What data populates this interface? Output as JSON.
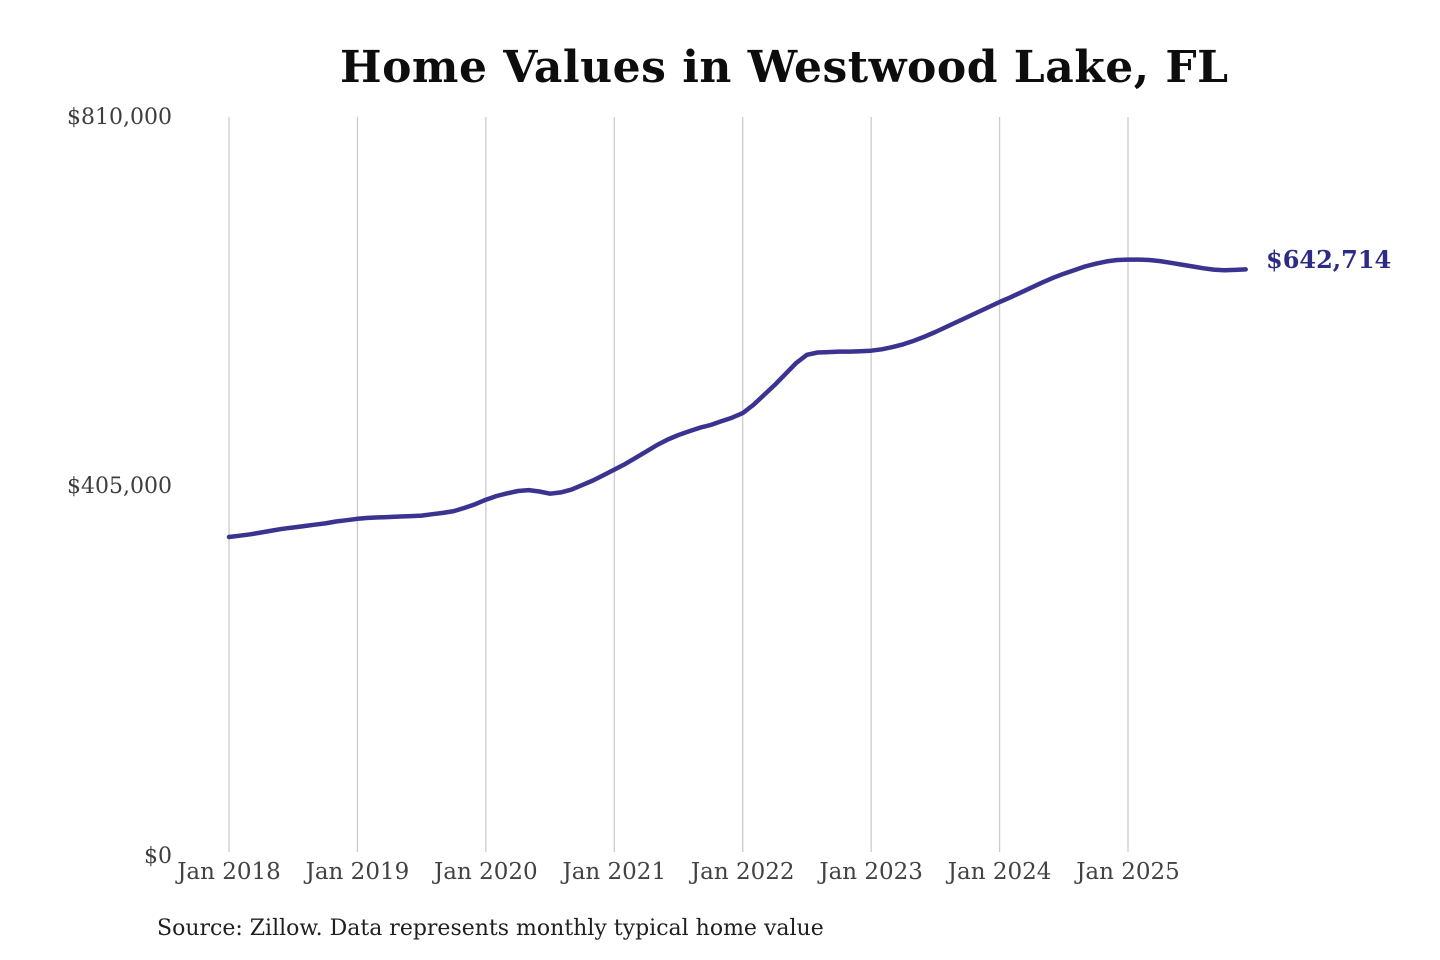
{
  "title": "Home Values in Westwood Lake, FL",
  "current_value_label": "$642,714",
  "source_note": "Source: Zillow. Data represents monthly typical home value",
  "colors": {
    "line": "#3b3390",
    "current_value_text": "#2e2b84",
    "gridline": "#cccccc",
    "axis_text": "#424242",
    "title_text": "#0d0d0d",
    "source_text": "#1f1f1f",
    "background": "#ffffff"
  },
  "y_axis": {
    "ticks": [
      "$810,000",
      "$405,000",
      "$0"
    ],
    "min": 0,
    "max": 810000
  },
  "x_axis": {
    "ticks": [
      "Jan 2018",
      "Jan 2019",
      "Jan 2020",
      "Jan 2021",
      "Jan 2022",
      "Jan 2023",
      "Jan 2024",
      "Jan 2025"
    ]
  },
  "chart_data": {
    "type": "line",
    "title": "Home Values in Westwood Lake, FL",
    "xlabel": "",
    "ylabel": "",
    "ylim": [
      0,
      810000
    ],
    "grid": "vertical-only",
    "legend": "none",
    "final_value": 642714,
    "final_value_label": "$642,714",
    "x": [
      "2018-01",
      "2018-02",
      "2018-03",
      "2018-04",
      "2018-05",
      "2018-06",
      "2018-07",
      "2018-08",
      "2018-09",
      "2018-10",
      "2018-11",
      "2018-12",
      "2019-01",
      "2019-02",
      "2019-03",
      "2019-04",
      "2019-05",
      "2019-06",
      "2019-07",
      "2019-08",
      "2019-09",
      "2019-10",
      "2019-11",
      "2019-12",
      "2020-01",
      "2020-02",
      "2020-03",
      "2020-04",
      "2020-05",
      "2020-06",
      "2020-07",
      "2020-08",
      "2020-09",
      "2020-10",
      "2020-11",
      "2020-12",
      "2021-01",
      "2021-02",
      "2021-03",
      "2021-04",
      "2021-05",
      "2021-06",
      "2021-07",
      "2021-08",
      "2021-09",
      "2021-10",
      "2021-11",
      "2021-12",
      "2022-01",
      "2022-02",
      "2022-03",
      "2022-04",
      "2022-05",
      "2022-06",
      "2022-07",
      "2022-08",
      "2022-09",
      "2022-10",
      "2022-11",
      "2022-12",
      "2023-01",
      "2023-02",
      "2023-03",
      "2023-04",
      "2023-05",
      "2023-06",
      "2023-07",
      "2023-08",
      "2023-09",
      "2023-10",
      "2023-11",
      "2023-12",
      "2024-01",
      "2024-02",
      "2024-03",
      "2024-04",
      "2024-05",
      "2024-06",
      "2024-07",
      "2024-08",
      "2024-09",
      "2024-10",
      "2024-11",
      "2024-12",
      "2025-01",
      "2025-02",
      "2025-03",
      "2025-04",
      "2025-05",
      "2025-06",
      "2025-07",
      "2025-08",
      "2025-09",
      "2025-10",
      "2025-11",
      "2025-12"
    ],
    "values": [
      349000,
      350500,
      352000,
      354000,
      356000,
      358000,
      359500,
      361000,
      362500,
      364000,
      366000,
      367500,
      369000,
      370000,
      370500,
      371000,
      371500,
      372000,
      372500,
      374000,
      375500,
      377500,
      381000,
      385000,
      390000,
      394000,
      397000,
      399500,
      400500,
      399000,
      396500,
      398000,
      401000,
      406000,
      411000,
      417000,
      423000,
      429000,
      436000,
      443000,
      450000,
      456000,
      461000,
      465000,
      469000,
      472000,
      476000,
      480000,
      485000,
      494000,
      505000,
      516000,
      528000,
      540000,
      549000,
      551500,
      552000,
      552500,
      552500,
      553000,
      553500,
      555000,
      557500,
      560500,
      564500,
      569000,
      574000,
      579500,
      585000,
      590500,
      596000,
      601500,
      607000,
      612000,
      617500,
      623000,
      628500,
      633500,
      638000,
      642000,
      646000,
      649000,
      651500,
      653000,
      653500,
      653500,
      653000,
      651800,
      650000,
      648000,
      646000,
      644000,
      642500,
      641800,
      642200,
      642714
    ]
  }
}
